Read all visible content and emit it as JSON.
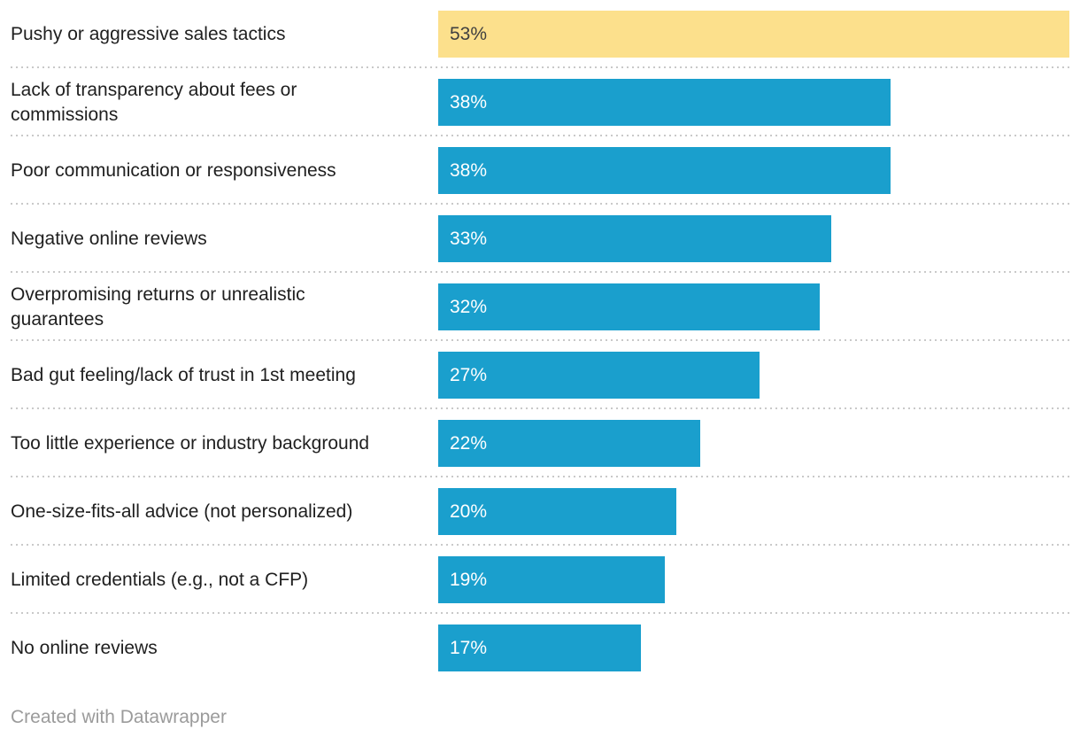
{
  "chart_data": {
    "type": "bar",
    "orientation": "horizontal",
    "title": "",
    "xlabel": "",
    "ylabel": "",
    "xlim": [
      0,
      53
    ],
    "grid": false,
    "legend": false,
    "categories": [
      "Pushy or aggressive sales tactics",
      "Lack of transparency about fees or commissions",
      "Poor communication or responsiveness",
      "Negative online reviews",
      "Overpromising returns or unrealistic guarantees",
      "Bad gut feeling/lack of trust in 1st meeting",
      "Too little experience or industry background",
      "One-size-fits-all advice (not personalized)",
      "Limited credentials (e.g., not a CFP)",
      "No online reviews"
    ],
    "values": [
      53,
      38,
      38,
      33,
      32,
      27,
      22,
      20,
      19,
      17
    ],
    "value_labels": [
      "53%",
      "38%",
      "38%",
      "33%",
      "32%",
      "27%",
      "22%",
      "20%",
      "19%",
      "17%"
    ],
    "highlight": {
      "index": 0,
      "category": "Pushy or aggressive sales tactics"
    },
    "footer": "Created with Datawrapper"
  },
  "rows": [
    {
      "label_lines": [
        "Pushy or aggressive sales tactics"
      ],
      "value": 53,
      "value_label": "53%",
      "highlighted": true
    },
    {
      "label_lines": [
        "Lack of transparency about fees or",
        "commissions"
      ],
      "value": 38,
      "value_label": "38%",
      "highlighted": false
    },
    {
      "label_lines": [
        "Poor communication or responsiveness"
      ],
      "value": 38,
      "value_label": "38%",
      "highlighted": false
    },
    {
      "label_lines": [
        "Negative online reviews"
      ],
      "value": 33,
      "value_label": "33%",
      "highlighted": false
    },
    {
      "label_lines": [
        "Overpromising returns or unrealistic",
        "guarantees"
      ],
      "value": 32,
      "value_label": "32%",
      "highlighted": false
    },
    {
      "label_lines": [
        "Bad gut feeling/lack of trust in 1st meeting"
      ],
      "value": 27,
      "value_label": "27%",
      "highlighted": false
    },
    {
      "label_lines": [
        "Too little experience or industry background"
      ],
      "value": 22,
      "value_label": "22%",
      "highlighted": false
    },
    {
      "label_lines": [
        "One-size-fits-all advice (not personalized)"
      ],
      "value": 20,
      "value_label": "20%",
      "highlighted": false
    },
    {
      "label_lines": [
        "Limited credentials (e.g., not a CFP)"
      ],
      "value": 19,
      "value_label": "19%",
      "highlighted": false
    },
    {
      "label_lines": [
        "No online reviews"
      ],
      "value": 17,
      "value_label": "17%",
      "highlighted": false
    }
  ],
  "colors": {
    "bar": "#1a9fcd",
    "highlight_bar": "#fce08c",
    "label_text": "#1f1f1f",
    "value_text": "#ffffff",
    "value_text_on_highlight": "#404040",
    "separator": "#c9c9c9",
    "footer_text": "#9b9b9b"
  },
  "footer": {
    "credit": "Created with Datawrapper"
  }
}
